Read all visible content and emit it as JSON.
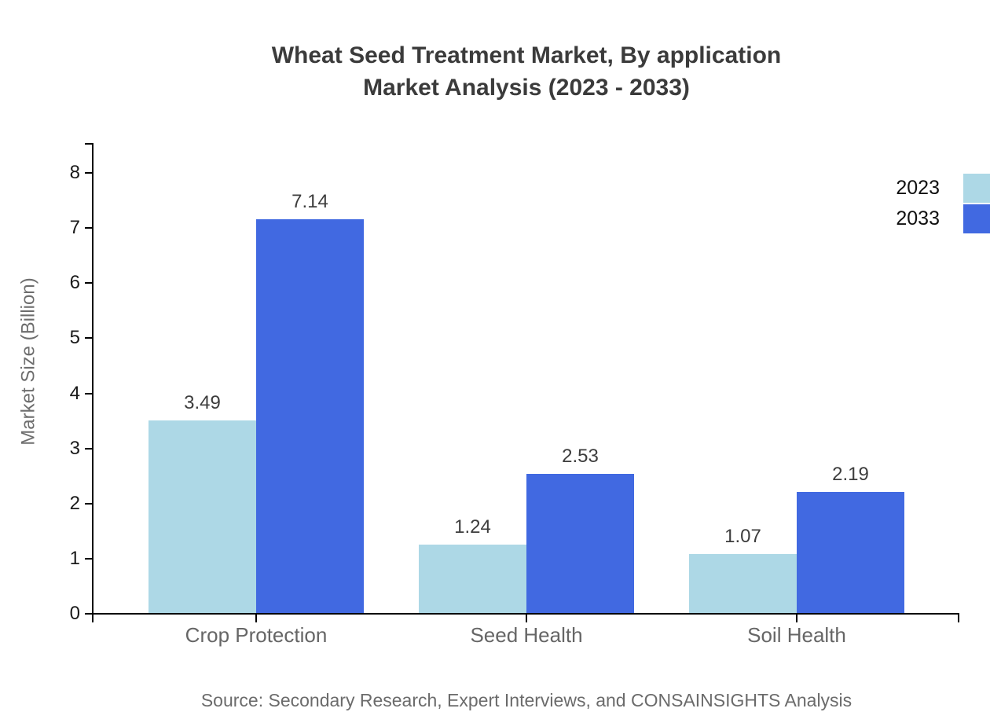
{
  "chart_data": {
    "type": "bar",
    "title": "Wheat Seed Treatment Market, By application Market Analysis (2023 - 2033)",
    "title_lines": [
      "Wheat Seed Treatment Market, By application",
      "Market Analysis (2023 - 2033)"
    ],
    "categories": [
      "Crop Protection",
      "Seed Health",
      "Soil Health"
    ],
    "series": [
      {
        "name": "2023",
        "color": "#ADD8E6",
        "values": [
          3.49,
          1.24,
          1.07
        ]
      },
      {
        "name": "2033",
        "color": "#4169E1",
        "values": [
          7.14,
          2.53,
          2.19
        ]
      }
    ],
    "value_labels": [
      "3.49",
      "7.14",
      "1.24",
      "2.53",
      "1.07",
      "2.19"
    ],
    "xlabel": "",
    "ylabel": "Market Size (Billion)",
    "ylim": [
      0,
      8.5
    ],
    "yticks": [
      0,
      1,
      2,
      3,
      4,
      5,
      6,
      7,
      8
    ],
    "grid": false,
    "legend_position": "upper-right",
    "legend_entries": [
      "2023",
      "2033"
    ]
  },
  "source": "Source: Secondary Research, Expert Interviews, and CONSAINSIGHTS Analysis",
  "colors": {
    "series_2023": "#ADD8E6",
    "series_2033": "#4169E1",
    "axis": "#000000",
    "title_text": "#3b3b3b",
    "muted_text": "#6b6b6b"
  }
}
